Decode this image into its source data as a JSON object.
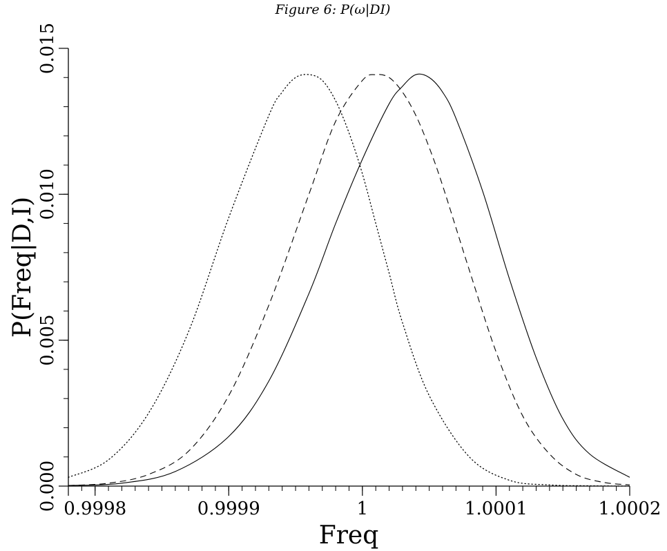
{
  "chart_data": {
    "type": "line",
    "title": "Figure 6: P(ω|DI)",
    "xlabel": "Freq",
    "ylabel": "P(Freq|D,I)",
    "xlim": [
      0.99978,
      1.0002
    ],
    "ylim": [
      0,
      0.015
    ],
    "x_ticks": [
      {
        "value": 0.9998,
        "label": "0.9998"
      },
      {
        "value": 0.9999,
        "label": "0.9999"
      },
      {
        "value": 1.0,
        "label": "1"
      },
      {
        "value": 1.0001,
        "label": "1.0001"
      },
      {
        "value": 1.0002,
        "label": "1.0002"
      }
    ],
    "y_ticks": [
      {
        "value": 0.0,
        "label": "0.000"
      },
      {
        "value": 0.005,
        "label": "0.005"
      },
      {
        "value": 0.01,
        "label": "0.010"
      },
      {
        "value": 0.015,
        "label": "0.015"
      }
    ],
    "x_minor_step": 1e-05,
    "y_minor_step": 0.001,
    "grid": false,
    "legend": "none",
    "series": [
      {
        "style": "dotted",
        "x": [
          0.99978,
          0.99981,
          0.99984,
          0.99987,
          0.9999,
          0.99993,
          0.99994,
          0.99995,
          0.99996,
          0.99997,
          0.99998,
          0.99999,
          1.0,
          1.00001,
          1.00002,
          1.00003,
          1.00005,
          1.00008,
          1.00011,
          1.00014,
          1.00017,
          1.0002
        ],
        "y": [
          0.0003,
          0.0009,
          0.0025,
          0.0053,
          0.0092,
          0.0127,
          0.0135,
          0.014,
          0.0141,
          0.0139,
          0.0132,
          0.0121,
          0.0107,
          0.009,
          0.0073,
          0.0056,
          0.0031,
          0.001,
          0.0002,
          4e-05,
          1e-05,
          0.0
        ]
      },
      {
        "style": "dashed",
        "x": [
          0.99978,
          0.99981,
          0.99984,
          0.99987,
          0.9999,
          0.99993,
          0.99996,
          0.99998,
          1.0,
          1.00001,
          1.00002,
          1.00003,
          1.00004,
          1.00005,
          1.00006,
          1.00008,
          1.0001,
          1.00012,
          1.00014,
          1.00016,
          1.00018,
          1.0002
        ],
        "y": [
          2e-05,
          0.0001,
          0.0004,
          0.0012,
          0.0031,
          0.0062,
          0.01,
          0.0125,
          0.0139,
          0.0141,
          0.014,
          0.0135,
          0.0127,
          0.0116,
          0.0103,
          0.0074,
          0.0046,
          0.0024,
          0.0011,
          0.0004,
          0.00013,
          4e-05
        ]
      },
      {
        "style": "solid",
        "x": [
          0.99978,
          0.99982,
          0.99986,
          0.9999,
          0.99993,
          0.99996,
          0.99998,
          1.0,
          1.00002,
          1.00003,
          1.00004,
          1.00005,
          1.00006,
          1.00007,
          1.00009,
          1.00011,
          1.00013,
          1.00015,
          1.00017,
          1.0002
        ],
        "y": [
          2e-05,
          0.0001,
          0.0005,
          0.0017,
          0.0036,
          0.0066,
          0.009,
          0.0112,
          0.0131,
          0.0137,
          0.0141,
          0.014,
          0.0135,
          0.0126,
          0.0101,
          0.0071,
          0.0044,
          0.0023,
          0.0011,
          0.0003
        ]
      }
    ]
  }
}
